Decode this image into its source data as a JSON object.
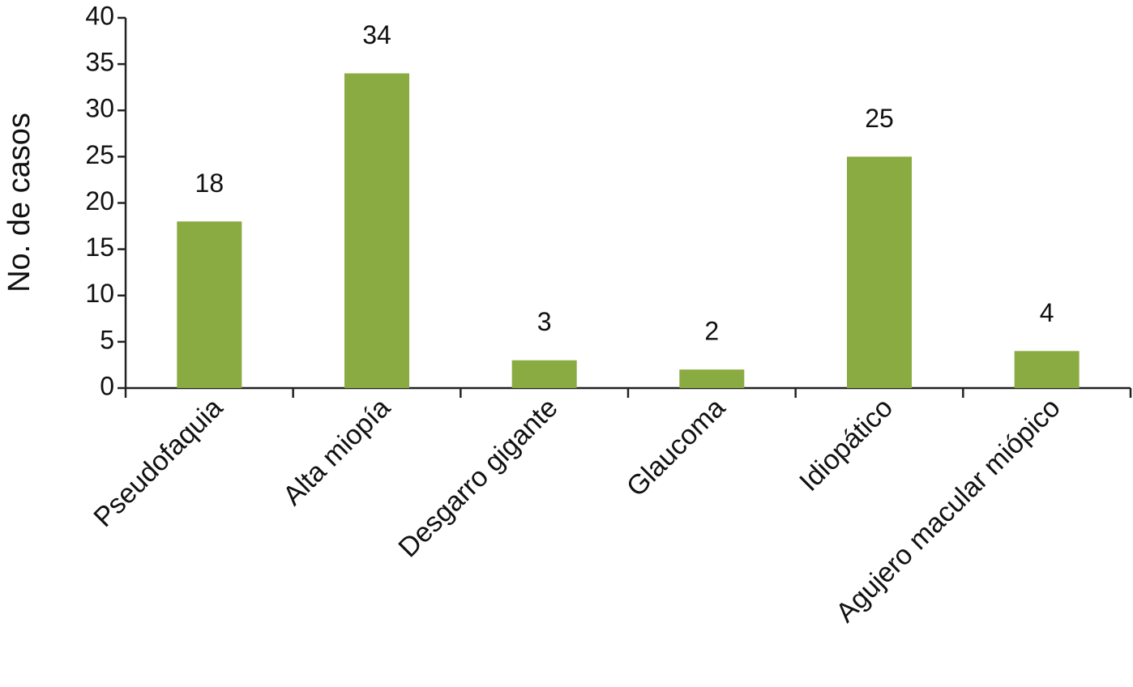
{
  "chart_data": {
    "type": "bar",
    "y_label": "No. de casos",
    "categories": [
      "Pseudofaquia",
      "Alta miopía",
      "Desgarro gigante",
      "Glaucoma",
      "Idiopático",
      "Agujero macular miópico"
    ],
    "values": [
      18,
      34,
      3,
      2,
      25,
      4
    ],
    "color": "#8aab42",
    "ylim": [
      0,
      40
    ],
    "yticks": [
      0,
      5,
      10,
      15,
      20,
      25,
      30,
      35,
      40
    ],
    "grid": false,
    "show_value_labels": true
  }
}
